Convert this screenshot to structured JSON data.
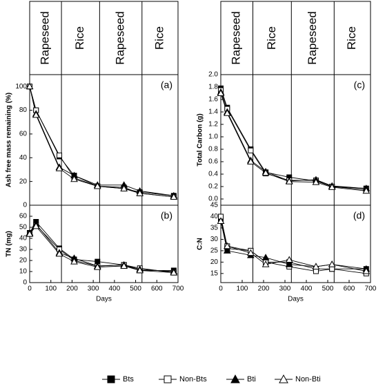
{
  "chart_data": [
    {
      "type": "line",
      "panel_label": "(a)",
      "y_label": "Ash free mass remaining (%)",
      "period_labels": [
        "Rapeseed",
        "Rice",
        "Rapeseed",
        "Rice"
      ],
      "period_bounds": [
        150,
        330,
        530
      ],
      "x": [
        0,
        30,
        140,
        210,
        320,
        445,
        520,
        680
      ],
      "xlim": [
        0,
        700
      ],
      "ylim": [
        0,
        110
      ],
      "yticks": [
        0,
        20,
        40,
        60,
        80,
        100
      ],
      "series": [
        {
          "name": "Bts",
          "color": "#000000",
          "marker": "square-filled",
          "values": [
            100,
            80,
            41,
            25,
            16,
            14,
            11,
            8
          ]
        },
        {
          "name": "Non-Bts",
          "color": "#000000",
          "marker": "square-open",
          "values": [
            100,
            80,
            42,
            23,
            16,
            15,
            10,
            7
          ]
        },
        {
          "name": "Bti",
          "color": "#000000",
          "marker": "triangle-filled",
          "values": [
            100,
            77,
            32,
            25,
            17,
            17,
            12,
            8
          ]
        },
        {
          "name": "Non-Bti",
          "color": "#000000",
          "marker": "triangle-open",
          "values": [
            100,
            76,
            31,
            22,
            16,
            14,
            10,
            7
          ]
        }
      ]
    },
    {
      "type": "line",
      "panel_label": "(b)",
      "y_label": "TN (mg)",
      "x_label": "Days",
      "period_bounds": [
        150,
        330,
        530
      ],
      "x": [
        0,
        30,
        140,
        210,
        320,
        445,
        520,
        680
      ],
      "xlim": [
        0,
        700
      ],
      "xticks": [
        0,
        100,
        200,
        300,
        400,
        500,
        600,
        700
      ],
      "ylim": [
        0,
        70
      ],
      "yticks": [
        0,
        10,
        20,
        30,
        40,
        50,
        60
      ],
      "series": [
        {
          "name": "Bts",
          "color": "#000000",
          "marker": "square-filled",
          "values": [
            45,
            55,
            31,
            21,
            19,
            16,
            11,
            11
          ]
        },
        {
          "name": "Non-Bts",
          "color": "#000000",
          "marker": "square-open",
          "values": [
            44,
            52,
            30,
            20,
            15,
            16,
            13,
            9
          ]
        },
        {
          "name": "Bti",
          "color": "#000000",
          "marker": "triangle-filled",
          "values": [
            45,
            53,
            27,
            22,
            15,
            16,
            12,
            10
          ]
        },
        {
          "name": "Non-Bti",
          "color": "#000000",
          "marker": "triangle-open",
          "values": [
            44,
            51,
            26,
            19,
            14,
            15,
            11,
            9
          ]
        }
      ]
    },
    {
      "type": "line",
      "panel_label": "(c)",
      "y_label": "Total Carbon (g)",
      "period_labels": [
        "Rapeseed",
        "Rice",
        "Rapeseed",
        "Rice"
      ],
      "period_bounds": [
        150,
        330,
        530
      ],
      "x": [
        0,
        30,
        140,
        210,
        320,
        445,
        520,
        680
      ],
      "xlim": [
        0,
        700
      ],
      "ylim": [
        -0.1,
        2.0
      ],
      "yticks": [
        {
          "value": 0,
          "label": "0.0"
        },
        {
          "value": 0.2,
          "label": "0.2"
        },
        {
          "value": 0.4,
          "label": "0.4"
        },
        {
          "value": 0.6,
          "label": "0.6"
        },
        {
          "value": 0.8,
          "label": "0.8"
        },
        {
          "value": 1,
          "label": "1.0"
        },
        {
          "value": 1.2,
          "label": "1.2"
        },
        {
          "value": 1.4,
          "label": "1.4"
        },
        {
          "value": 1.6,
          "label": "1.6"
        },
        {
          "value": 1.8,
          "label": "1.8"
        },
        {
          "value": 2,
          "label": "2.0"
        }
      ],
      "series": [
        {
          "name": "Bts",
          "color": "#000000",
          "marker": "square-filled",
          "values": [
            1.78,
            1.47,
            0.8,
            0.43,
            0.35,
            0.29,
            0.2,
            0.17
          ]
        },
        {
          "name": "Non-Bts",
          "color": "#000000",
          "marker": "square-open",
          "values": [
            1.75,
            1.45,
            0.78,
            0.41,
            0.3,
            0.3,
            0.2,
            0.15
          ]
        },
        {
          "name": "Bti",
          "color": "#000000",
          "marker": "triangle-filled",
          "values": [
            1.72,
            1.4,
            0.62,
            0.44,
            0.29,
            0.31,
            0.21,
            0.17
          ]
        },
        {
          "name": "Non-Bti",
          "color": "#000000",
          "marker": "triangle-open",
          "values": [
            1.7,
            1.38,
            0.6,
            0.42,
            0.28,
            0.27,
            0.19,
            0.13
          ]
        }
      ]
    },
    {
      "type": "line",
      "panel_label": "(d)",
      "y_label": "C:N",
      "x_label": "Days",
      "period_bounds": [
        150,
        330,
        530
      ],
      "x": [
        0,
        30,
        140,
        210,
        320,
        445,
        520,
        680
      ],
      "xlim": [
        0,
        700
      ],
      "xticks": [
        0,
        100,
        200,
        300,
        400,
        500,
        600,
        700
      ],
      "ylim": [
        11,
        45
      ],
      "yticks": [
        15,
        20,
        25,
        30,
        35,
        40,
        45
      ],
      "series": [
        {
          "name": "Bts",
          "color": "#000000",
          "marker": "square-filled",
          "values": [
            39,
            26,
            25,
            20,
            20,
            17,
            17,
            17
          ]
        },
        {
          "name": "Non-Bts",
          "color": "#000000",
          "marker": "square-open",
          "values": [
            40,
            27,
            25,
            20,
            18,
            16,
            17,
            15
          ]
        },
        {
          "name": "Bti",
          "color": "#000000",
          "marker": "triangle-filled",
          "values": [
            38,
            25,
            23,
            22,
            19,
            18,
            19,
            17
          ]
        },
        {
          "name": "Non-Bti",
          "color": "#000000",
          "marker": "triangle-open",
          "values": [
            38,
            27,
            24,
            19,
            21,
            18,
            19,
            16
          ]
        }
      ]
    }
  ]
}
